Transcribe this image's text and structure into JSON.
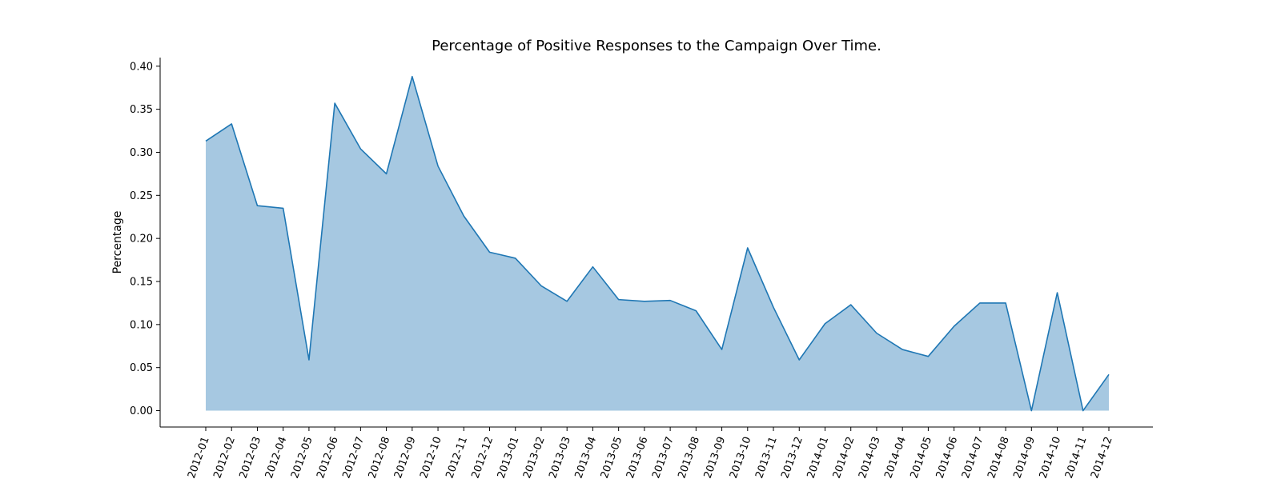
{
  "chart_data": {
    "type": "area",
    "title": "Percentage of Positive Responses to the Campaign Over Time.",
    "xlabel": "",
    "ylabel": "Percentage",
    "ylim": [
      -0.019,
      0.41
    ],
    "yticks": [
      0.0,
      0.05,
      0.1,
      0.15,
      0.2,
      0.25,
      0.3,
      0.35,
      0.4
    ],
    "ytick_labels": [
      "0.00",
      "0.05",
      "0.10",
      "0.15",
      "0.20",
      "0.25",
      "0.30",
      "0.35",
      "0.40"
    ],
    "grid": false,
    "categories": [
      "2012-01",
      "2012-02",
      "2012-03",
      "2012-04",
      "2012-05",
      "2012-06",
      "2012-07",
      "2012-08",
      "2012-09",
      "2012-10",
      "2012-11",
      "2012-12",
      "2013-01",
      "2013-02",
      "2013-03",
      "2013-04",
      "2013-05",
      "2013-06",
      "2013-07",
      "2013-08",
      "2013-09",
      "2013-10",
      "2013-11",
      "2013-12",
      "2014-01",
      "2014-02",
      "2014-03",
      "2014-04",
      "2014-05",
      "2014-06",
      "2014-07",
      "2014-08",
      "2014-09",
      "2014-10",
      "2014-11",
      "2014-12"
    ],
    "series": [
      {
        "name": "Percentage",
        "values": [
          0.313,
          0.333,
          0.238,
          0.235,
          0.059,
          0.357,
          0.304,
          0.275,
          0.388,
          0.284,
          0.226,
          0.184,
          0.177,
          0.145,
          0.127,
          0.167,
          0.129,
          0.127,
          0.128,
          0.116,
          0.071,
          0.189,
          0.12,
          0.059,
          0.101,
          0.123,
          0.09,
          0.071,
          0.063,
          0.098,
          0.125,
          0.125,
          0.0,
          0.137,
          0.0,
          0.042
        ],
        "line_color": "#1f77b4",
        "fill_color": "#a6c8e1"
      }
    ]
  }
}
